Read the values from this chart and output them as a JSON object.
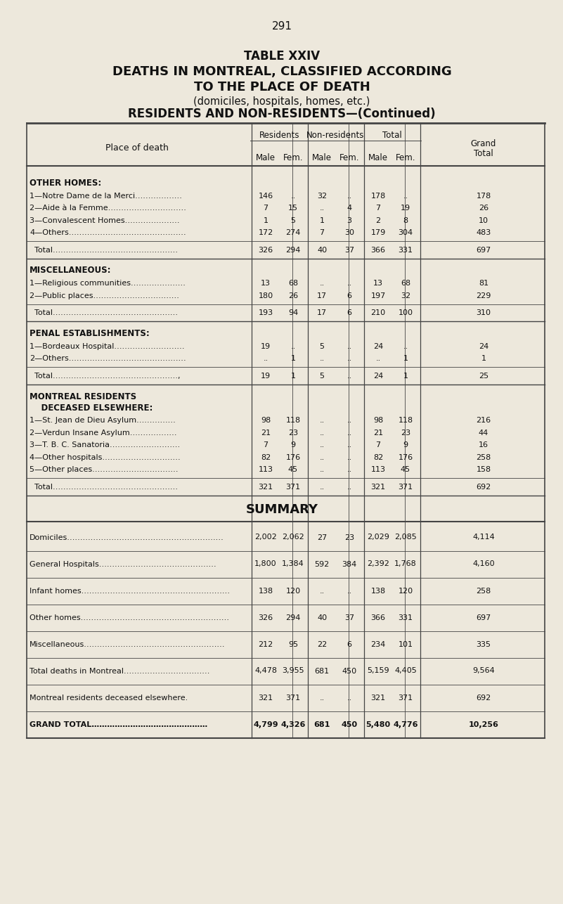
{
  "page_number": "291",
  "title_lines": [
    "TABLE XXIV",
    "DEATHS IN MONTREAL, CLASSIFIED ACCORDING",
    "TO THE PLACE OF DEATH",
    "(domiciles, hospitals, homes, etc.)",
    "RESIDENTS AND NON-RESIDENTS—(Continued)"
  ],
  "title_bold": [
    true,
    true,
    true,
    false,
    true
  ],
  "bg_color": "#ede8dc",
  "text_color": "#111111",
  "col_headers_sub": [
    "Male",
    "Fem.",
    "Male",
    "Fem.",
    "Male",
    "Fem."
  ],
  "sections": [
    {
      "header": "OTHER HOMES:",
      "rows": [
        {
          "label": "1—Notre Dame de la Merci………………",
          "vals": [
            "146",
            "..",
            "32",
            "..",
            "178",
            "..",
            "178"
          ]
        },
        {
          "label": "2—Aide à la Femme…………………………",
          "vals": [
            "7",
            "15",
            "..",
            "4",
            "7",
            "19",
            "26"
          ]
        },
        {
          "label": "3—Convalescent Homes…………………",
          "vals": [
            "1",
            "5",
            "1",
            "3",
            "2",
            "8",
            "10"
          ]
        },
        {
          "label": "4—Others………………………………………",
          "vals": [
            "172",
            "274",
            "7",
            "30",
            "179",
            "304",
            "483"
          ]
        }
      ],
      "total": {
        "label": "Total…………………………………………",
        "vals": [
          "326",
          "294",
          "40",
          "37",
          "366",
          "331",
          "697"
        ]
      }
    },
    {
      "header": "MISCELLANEOUS:",
      "rows": [
        {
          "label": "1—Religious communities…………………",
          "vals": [
            "13",
            "68",
            "..",
            "..",
            "13",
            "68",
            "81"
          ]
        },
        {
          "label": "2—Public places……………………………",
          "vals": [
            "180",
            "26",
            "17",
            "6",
            "197",
            "32",
            "229"
          ]
        }
      ],
      "total": {
        "label": "Total…………………………………………",
        "vals": [
          "193",
          "94",
          "17",
          "6",
          "210",
          "100",
          "310"
        ]
      }
    },
    {
      "header": "PENAL ESTABLISHMENTS:",
      "rows": [
        {
          "label": "1—Bordeaux Hospital………………………",
          "vals": [
            "19",
            "..",
            "5",
            "..",
            "24",
            "..",
            "24"
          ]
        },
        {
          "label": "2—Others………………………………………",
          "vals": [
            "..",
            "1",
            "..",
            "..",
            "..",
            "1",
            "1"
          ]
        }
      ],
      "total": {
        "label": "Total…………………………………………,",
        "vals": [
          "19",
          "1",
          "5",
          "..",
          "24",
          "1",
          "25"
        ]
      }
    },
    {
      "header": "MONTREAL RESIDENTS",
      "header2": "    DECEASED ELSEWHERE:",
      "rows": [
        {
          "label": "1—St. Jean de Dieu Asylum……………",
          "vals": [
            "98",
            "118",
            "..",
            "..",
            "98",
            "118",
            "216"
          ]
        },
        {
          "label": "2—Verdun Insane Asylum………………",
          "vals": [
            "21",
            "23",
            "..",
            "..",
            "21",
            "23",
            "44"
          ]
        },
        {
          "label": "3—T. B. C. Sanatoria………………………",
          "vals": [
            "7",
            "9",
            "..",
            "..",
            "7",
            "9",
            "16"
          ]
        },
        {
          "label": "4—Other hospitals…………………………",
          "vals": [
            "82",
            "176",
            "..",
            "..",
            "82",
            "176",
            "258"
          ]
        },
        {
          "label": "5—Other places……………………………",
          "vals": [
            "113",
            "45",
            "..",
            "..",
            "113",
            "45",
            "158"
          ]
        }
      ],
      "total": {
        "label": "Total…………………………………………",
        "vals": [
          "321",
          "371",
          "..",
          "..",
          "321",
          "371",
          "692"
        ]
      }
    }
  ],
  "summary_rows": [
    {
      "label": "Domiciles……………………………………………………",
      "vals": [
        "2,002",
        "2,062",
        "27",
        "23",
        "2,029",
        "2,085",
        "4,114"
      ],
      "bold": false
    },
    {
      "label": "General Hospitals………………………………………",
      "vals": [
        "1,800",
        "1,384",
        "592",
        "384",
        "2,392",
        "1,768",
        "4,160"
      ],
      "bold": false
    },
    {
      "label": "Infant homes…………………………………………………",
      "vals": [
        "138",
        "120",
        "..",
        "..",
        "138",
        "120",
        "258"
      ],
      "bold": false
    },
    {
      "label": "Other homes…………………………………………………",
      "vals": [
        "326",
        "294",
        "40",
        "37",
        "366",
        "331",
        "697"
      ],
      "bold": false
    },
    {
      "label": "Miscellaneous………………………………………………",
      "vals": [
        "212",
        "95",
        "22",
        "6",
        "234",
        "101",
        "335"
      ],
      "bold": false
    },
    {
      "label": "Total deaths in Montreal……………………………",
      "vals": [
        "4,478",
        "3,955",
        "681",
        "450",
        "5,159",
        "4,405",
        "9,564"
      ],
      "bold": false
    },
    {
      "label": "Montreal residents deceased elsewhere.",
      "vals": [
        "321",
        "371",
        "..",
        "..",
        "321",
        "371",
        "692"
      ],
      "bold": false
    },
    {
      "label": "GRAND TOTAL………………………………………",
      "vals": [
        "4,799",
        "4,326",
        "681",
        "450",
        "5,480",
        "4,776",
        "10,256"
      ],
      "bold": true
    }
  ]
}
